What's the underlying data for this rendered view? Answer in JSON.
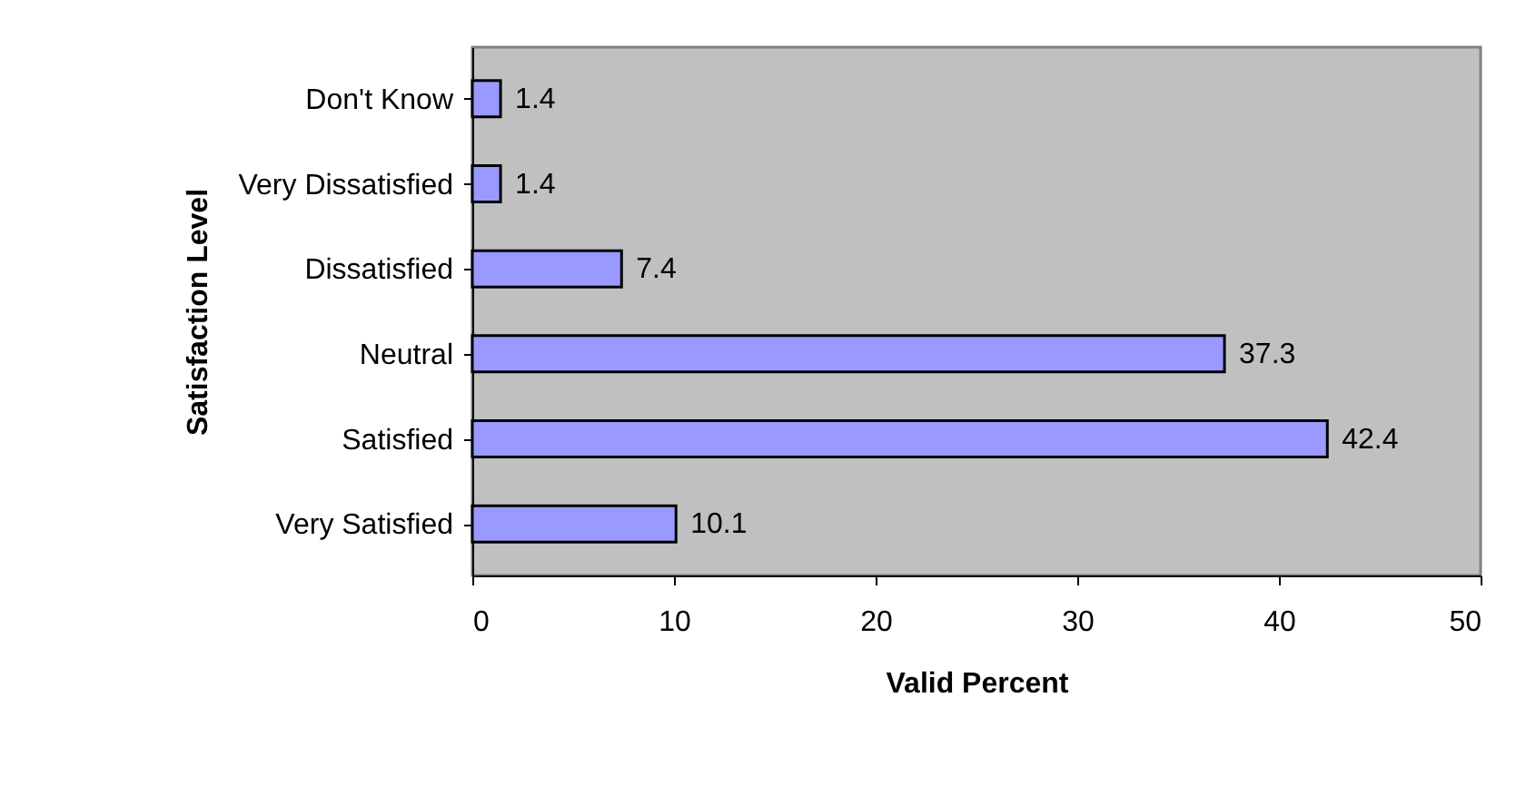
{
  "chart_data": {
    "type": "bar",
    "orientation": "horizontal",
    "xlabel": "Valid Percent",
    "ylabel": "Satisfaction Level",
    "categories": [
      "Don't Know",
      "Very Dissatisfied",
      "Dissatisfied",
      "Neutral",
      "Satisfied",
      "Very Satisfied"
    ],
    "values": [
      1.4,
      1.4,
      7.4,
      37.3,
      42.4,
      10.1
    ],
    "color": "#9999ff",
    "xlim": [
      0,
      50
    ],
    "xticks": [
      0,
      10,
      20,
      30,
      40,
      50
    ],
    "grid": false,
    "data_labels": true
  }
}
